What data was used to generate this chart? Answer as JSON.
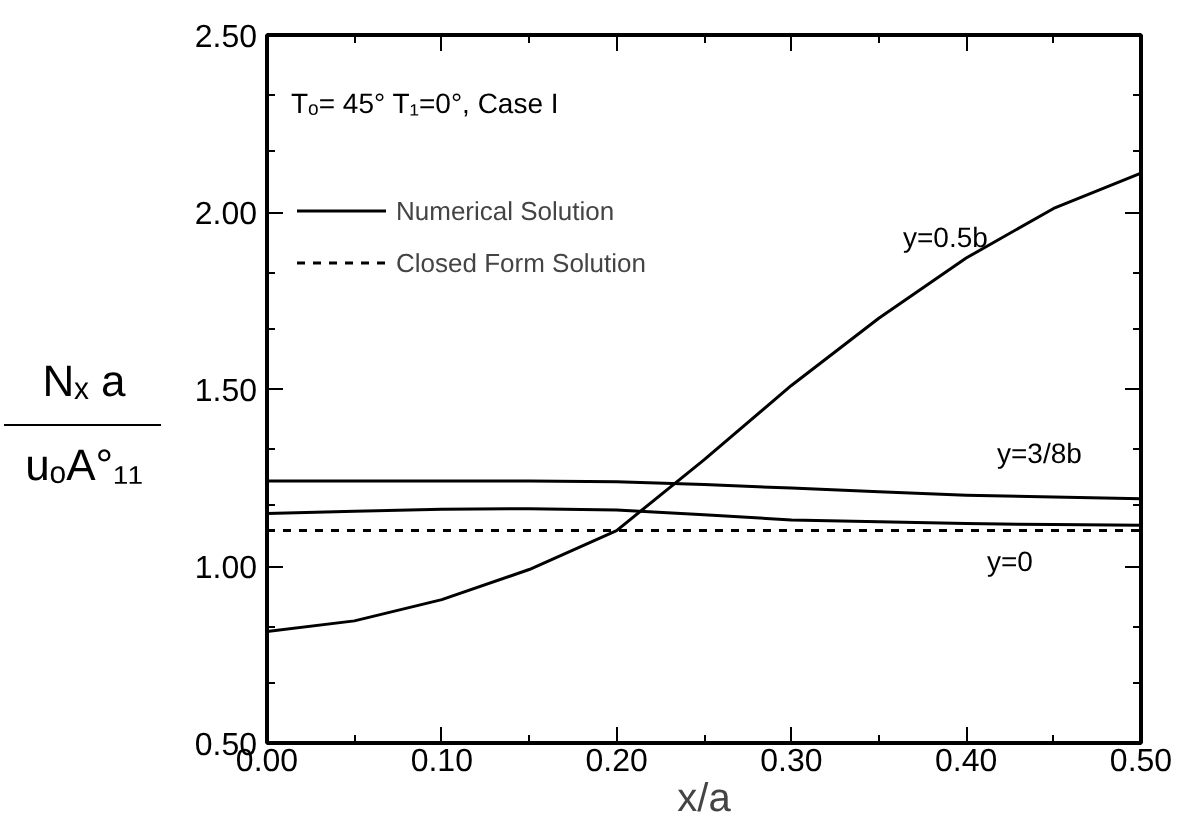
{
  "chart_data": {
    "type": "line",
    "xlabel": "x/a",
    "ylabel": "Nₓ a\nuₒA°₁₁",
    "xlim": [
      0,
      0.5
    ],
    "ylim": [
      0.5,
      2.5
    ],
    "xticks": [
      {
        "value": 0,
        "label": "0.00"
      },
      {
        "value": 0.05,
        "label": null
      },
      {
        "value": 0.1,
        "label": "0.10"
      },
      {
        "value": 0.15,
        "label": null
      },
      {
        "value": 0.2,
        "label": "0.20"
      },
      {
        "value": 0.25,
        "label": null
      },
      {
        "value": 0.3,
        "label": "0.30"
      },
      {
        "value": 0.35,
        "label": null
      },
      {
        "value": 0.4,
        "label": "0.40"
      },
      {
        "value": 0.45,
        "label": null
      },
      {
        "value": 0.5,
        "label": "0.50"
      }
    ],
    "yticks": [
      {
        "value": 0.5,
        "label": "0.50"
      },
      {
        "value": 0.67,
        "label": null
      },
      {
        "value": 0.83,
        "label": null
      },
      {
        "value": 1.0,
        "label": "1.00"
      },
      {
        "value": 1.17,
        "label": null
      },
      {
        "value": 1.33,
        "label": null
      },
      {
        "value": 1.5,
        "label": "1.50"
      },
      {
        "value": 1.67,
        "label": null
      },
      {
        "value": 1.83,
        "label": null
      },
      {
        "value": 2.0,
        "label": "2.00"
      },
      {
        "value": 2.17,
        "label": null
      },
      {
        "value": 2.33,
        "label": null
      },
      {
        "value": 2.5,
        "label": "2.50"
      }
    ],
    "x": [
      0,
      0.05,
      0.1,
      0.15,
      0.2,
      0.25,
      0.3,
      0.35,
      0.4,
      0.45,
      0.5
    ],
    "series": [
      {
        "name": "Numerical Solution",
        "color": "#000000",
        "line_style": "solid",
        "values": [
          0.815,
          0.845,
          0.905,
          0.99,
          1.1,
          1.3,
          1.51,
          1.7,
          1.87,
          2.01,
          2.11
        ]
      },
      {
        "color": "#000000",
        "line_style": "solid",
        "values": [
          1.24,
          1.24,
          1.24,
          1.24,
          1.238,
          1.23,
          1.22,
          1.21,
          1.2,
          1.195,
          1.19
        ]
      },
      {
        "color": "#000000",
        "line_style": "solid",
        "values": [
          1.148,
          1.155,
          1.16,
          1.162,
          1.158,
          1.145,
          1.13,
          1.125,
          1.12,
          1.117,
          1.115
        ]
      },
      {
        "name": "Closed Form Solution",
        "color": "#000000",
        "line_style": "dashed",
        "values": [
          1.1,
          1.1,
          1.1,
          1.1,
          1.1,
          1.1,
          1.1,
          1.1,
          1.1,
          1.1,
          1.1
        ]
      }
    ],
    "annotations": [
      "Tₒ= 45° T₁=0°, Case I",
      "y=0.5b",
      "y=3/8b",
      "y=0"
    ],
    "legend": "top left",
    "grid": false,
    "marker": "none"
  }
}
